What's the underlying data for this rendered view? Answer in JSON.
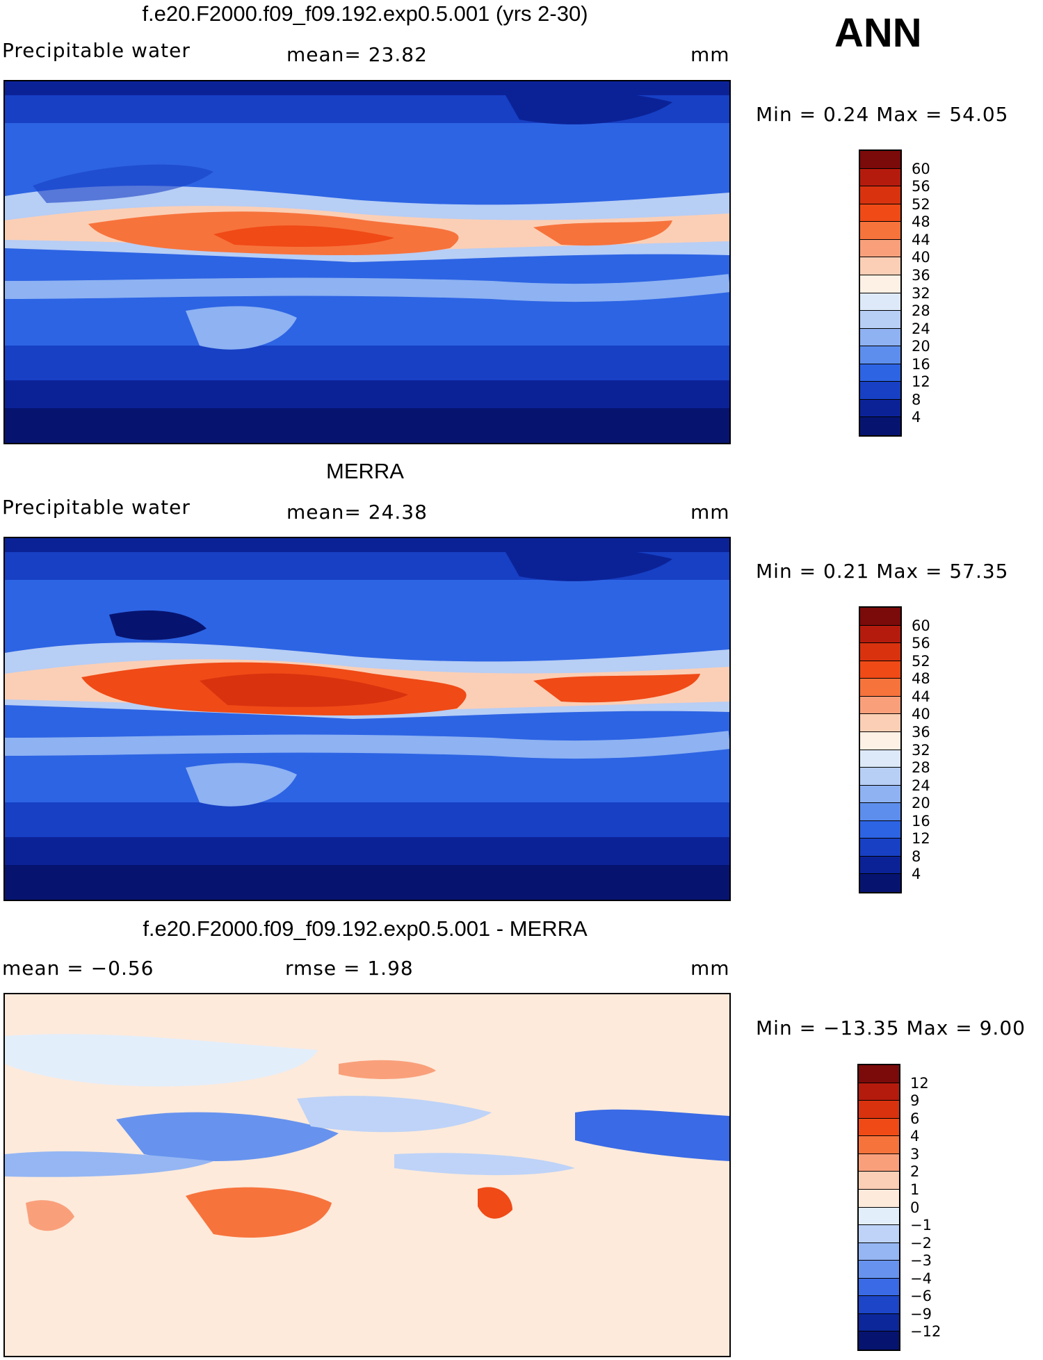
{
  "season": "ANN",
  "panels": [
    {
      "title": "f.e20.F2000.f09_f09.192.exp0.5.001 (yrs 2-30)",
      "left_label": "Precipitable water",
      "center_label": "mean=   23.82",
      "right_label": "mm",
      "minmax": "Min  =      0.24  Max  =     54.05",
      "colorbar": {
        "ticks": [
          "60",
          "56",
          "52",
          "48",
          "44",
          "40",
          "36",
          "32",
          "28",
          "24",
          "20",
          "16",
          "12",
          "8",
          "4"
        ],
        "colors": [
          "#7b0a0a",
          "#b51b0d",
          "#d9320f",
          "#f04a16",
          "#f7733c",
          "#f9a07b",
          "#fbcfb5",
          "#fdf0e4",
          "#dde9f8",
          "#b7cef5",
          "#8eb2f2",
          "#5d8eed",
          "#2d64e4",
          "#1740c4",
          "#0b2297",
          "#061470"
        ]
      }
    },
    {
      "title": "MERRA",
      "left_label": "Precipitable water",
      "center_label": "mean=   24.38",
      "right_label": "mm",
      "minmax": "Min  =      0.21  Max  =     57.35",
      "colorbar": {
        "ticks": [
          "60",
          "56",
          "52",
          "48",
          "44",
          "40",
          "36",
          "32",
          "28",
          "24",
          "20",
          "16",
          "12",
          "8",
          "4"
        ],
        "colors": [
          "#7b0a0a",
          "#b51b0d",
          "#d9320f",
          "#f04a16",
          "#f7733c",
          "#f9a07b",
          "#fbcfb5",
          "#fdf0e4",
          "#dde9f8",
          "#b7cef5",
          "#8eb2f2",
          "#5d8eed",
          "#2d64e4",
          "#1740c4",
          "#0b2297",
          "#061470"
        ]
      }
    },
    {
      "title": "f.e20.F2000.f09_f09.192.exp0.5.001 - MERRA",
      "left_label": "mean  =    −0.56",
      "center_label": "rmse  =     1.98",
      "right_label": "mm",
      "minmax": "Min  =  −13.35  Max  =      9.00",
      "colorbar": {
        "ticks": [
          "12",
          "9",
          "6",
          "4",
          "3",
          "2",
          "1",
          "0",
          "−1",
          "−2",
          "−3",
          "−4",
          "−6",
          "−9",
          "−12"
        ],
        "colors": [
          "#7b0a0a",
          "#b51b0d",
          "#d9320f",
          "#f04a16",
          "#f7733c",
          "#f9a07b",
          "#fbcfb5",
          "#fdeadb",
          "#e3eefb",
          "#bed3f7",
          "#95b6f3",
          "#6793ee",
          "#3a6ae5",
          "#1c45c8",
          "#0c2799",
          "#061470"
        ]
      }
    }
  ]
}
